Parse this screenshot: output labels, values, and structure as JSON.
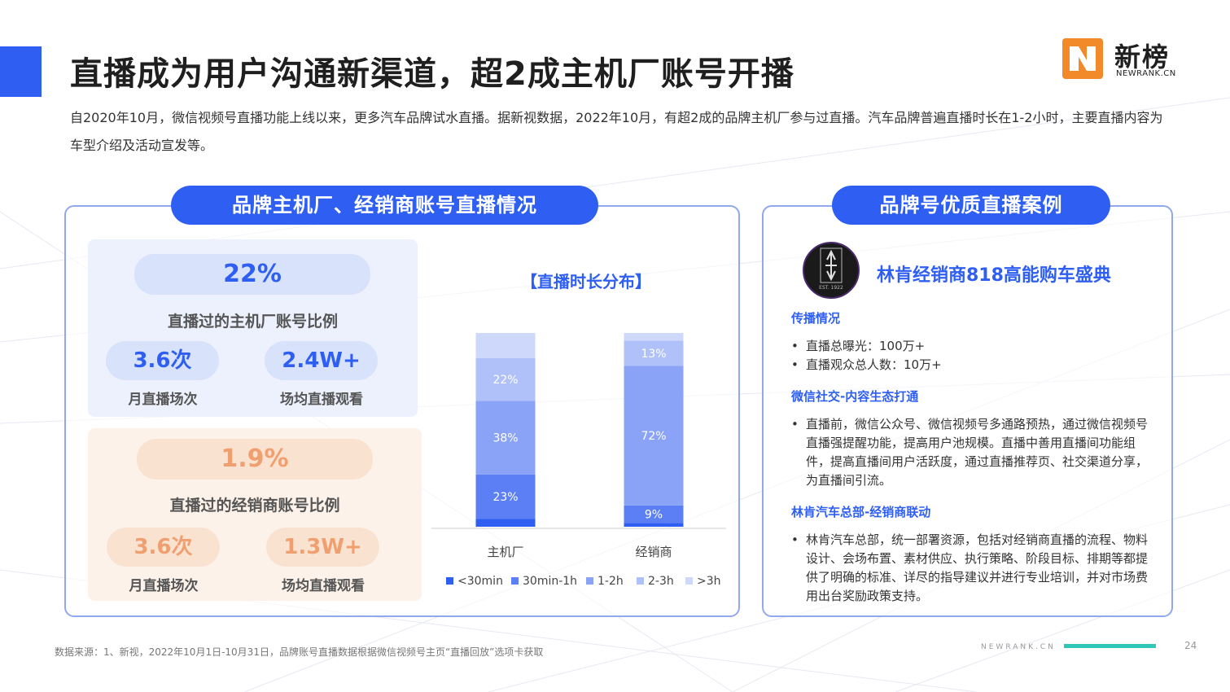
{
  "page": {
    "title": "直播成为用户沟通新渠道，超2成主机厂账号开播",
    "intro": "自2020年10月，微信视频号直播功能上线以来，更多汽车品牌试水直播。据新视数据，2022年10月，有超2成的品牌主机厂参与过直播。汽车品牌普遍直播时长在1-2小时，主要直播内容为车型介绍及活动宣发等。"
  },
  "logo": {
    "cn": "新榜",
    "en": "NEWRANK.CN"
  },
  "left_panel": {
    "title": "品牌主机厂、经销商账号直播情况",
    "oem": {
      "ratio": "22%",
      "ratio_label": "直播过的主机厂账号比例",
      "monthly": "3.6次",
      "monthly_label": "月直播场次",
      "avg_views": "2.4W+",
      "avg_views_label": "场均直播观看"
    },
    "dealer": {
      "ratio": "1.9%",
      "ratio_label": "直播过的经销商账号比例",
      "monthly": "3.6次",
      "monthly_label": "月直播场次",
      "avg_views": "1.3W+",
      "avg_views_label": "场均直播观看"
    }
  },
  "chart_data": {
    "type": "bar",
    "stacked": true,
    "title": "【直播时长分布】",
    "categories": [
      "主机厂",
      "经销商"
    ],
    "series": [
      {
        "name": "<30min",
        "values": [
          4,
          2
        ],
        "color": "#2f5ff2"
      },
      {
        "name": "30min-1h",
        "values": [
          23,
          9
        ],
        "color": "#5c7ff5"
      },
      {
        "name": "1-2h",
        "values": [
          38,
          72
        ],
        "color": "#8aa3f7"
      },
      {
        "name": "2-3h",
        "values": [
          22,
          13
        ],
        "color": "#b0c1f9"
      },
      {
        "name": ">3h",
        "values": [
          13,
          4
        ],
        "color": "#cdd8fb"
      }
    ],
    "data_labels": [
      {
        "category": "主机厂",
        "series": "30min-1h",
        "text": "23%"
      },
      {
        "category": "主机厂",
        "series": "1-2h",
        "text": "38%"
      },
      {
        "category": "主机厂",
        "series": "2-3h",
        "text": "22%"
      },
      {
        "category": "经销商",
        "series": "30min-1h",
        "text": "9%"
      },
      {
        "category": "经销商",
        "series": "1-2h",
        "text": "72%"
      },
      {
        "category": "经销商",
        "series": "2-3h",
        "text": "13%"
      }
    ],
    "ylim": [
      0,
      100
    ],
    "grid": false,
    "legend": "bottom"
  },
  "right_panel": {
    "title": "品牌号优质直播案例",
    "case_title": "林肯经销商818高能购车盛典",
    "brand_logo_text": "EST. 1922",
    "sections": [
      {
        "title": "传播情况",
        "bullets": [
          "直播总曝光：100万+",
          "直播观众总人数：10万+"
        ]
      },
      {
        "title": "微信社交-内容生态打通",
        "bullets": [
          "直播前，微信公众号、微信视频号多通路预热，通过微信视频号直播强提醒功能，提高用户池规模。直播中善用直播间功能组件，提高直播间用户活跃度，通过直播推荐页、社交渠道分享，为直播间引流。"
        ]
      },
      {
        "title": "林肯汽车总部-经销商联动",
        "bullets": [
          "林肯汽车总部，统一部署资源，包括对经销商直播的流程、物料设计、会场布置、素材供应、执行策略、阶段目标、排期等都提供了明确的标准、详尽的指导建议并进行专业培训，并对市场费用出台奖励政策支持。"
        ]
      }
    ]
  },
  "footer": {
    "source": "数据来源：1、新视，2022年10月1日-10月31日，品牌账号直播数据根据微信视频号主页“直播回放”选项卡获取",
    "brand": "NEWRANK.CN",
    "page_number": "24"
  },
  "colors": {
    "accent": "#2f5ff2",
    "orange": "#f0a070",
    "teal": "#2ec7b9"
  }
}
